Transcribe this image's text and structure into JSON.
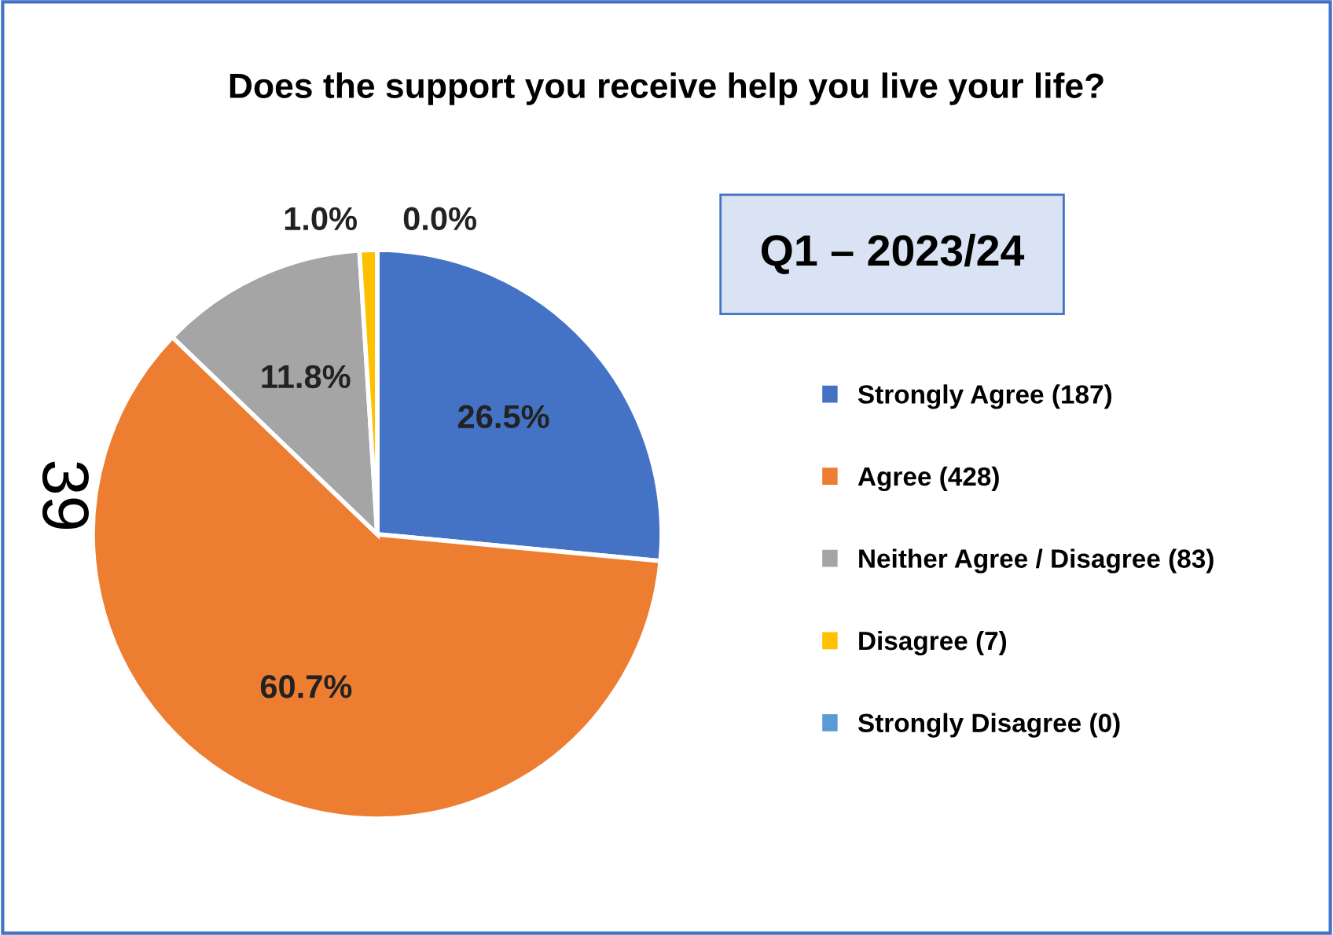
{
  "chart_data": {
    "type": "pie",
    "title": "Does the support you receive help you live your life?",
    "subtitle": "Q1 – 2023/24",
    "categories": [
      "Strongly Agree (187)",
      "Agree (428)",
      "Neither Agree / Disagree (83)",
      "Disagree (7)",
      "Strongly Disagree (0)"
    ],
    "values": [
      26.5,
      60.7,
      11.8,
      1.0,
      0.0
    ],
    "colors": [
      "#4472c4",
      "#ed7d31",
      "#a5a5a5",
      "#ffc000",
      "#5b9bd5"
    ],
    "value_labels": [
      "26.5%",
      "60.7%",
      "11.8%",
      "1.0%",
      "0.0%"
    ],
    "legend": "right",
    "annotations": [
      "39"
    ]
  }
}
